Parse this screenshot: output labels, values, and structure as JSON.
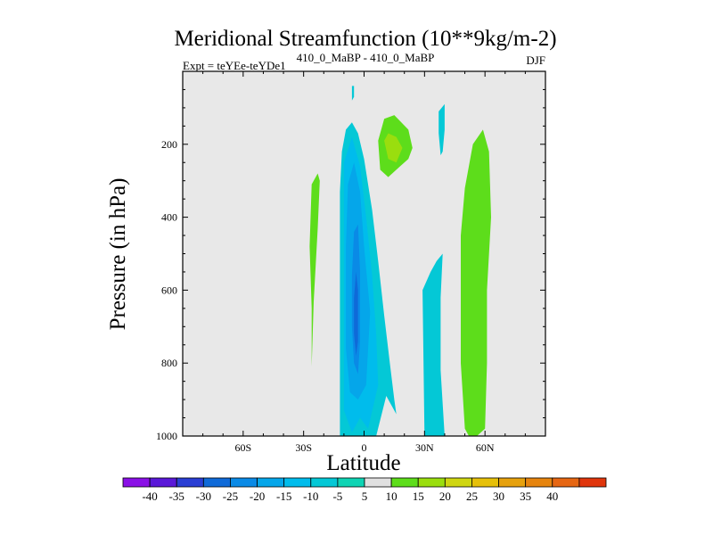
{
  "chart_data": {
    "type": "contour",
    "title": "Meridional Streamfunction (10**9kg/m-2)",
    "left_string": "Expt = teYEe-teYDe1",
    "center_string": "410_0_MaBP - 410_0_MaBP",
    "right_string": "DJF",
    "xlabel": "Latitude",
    "ylabel": "Pressure (in hPa)",
    "xlim": [
      -90,
      90
    ],
    "ylim": [
      1000,
      0
    ],
    "x_ticks": [
      {
        "value": -60,
        "label": "60S"
      },
      {
        "value": -30,
        "label": "30S"
      },
      {
        "value": 0,
        "label": "0"
      },
      {
        "value": 30,
        "label": "30N"
      },
      {
        "value": 60,
        "label": "60N"
      }
    ],
    "y_ticks": [
      {
        "value": 200,
        "label": "200"
      },
      {
        "value": 400,
        "label": "400"
      },
      {
        "value": 600,
        "label": "600"
      },
      {
        "value": 800,
        "label": "800"
      },
      {
        "value": 1000,
        "label": "1000"
      }
    ],
    "colorbar": {
      "labels": [
        "-40",
        "-35",
        "-30",
        "-25",
        "-20",
        "-15",
        "-10",
        "-5",
        "5",
        "10",
        "15",
        "20",
        "25",
        "30",
        "35",
        "40"
      ],
      "colors": [
        "#8a10e6",
        "#5a18d8",
        "#2a3ed4",
        "#0f6ad8",
        "#0a8ae6",
        "#05a6ea",
        "#00bcec",
        "#04c8d6",
        "#0fd4b4",
        "#e0e0e0",
        "#5ddd1b",
        "#9ade0e",
        "#cfd611",
        "#e6c009",
        "#e6a10d",
        "#e6840e",
        "#e66612",
        "#e0350c"
      ]
    },
    "regions": [
      {
        "level": "-10 to -5",
        "points": [
          [
            -6,
            0.04
          ],
          [
            -6,
            0.08
          ],
          [
            -5,
            0.07
          ],
          [
            -5,
            0.04
          ]
        ]
      },
      {
        "level": "-10 to -5",
        "points": [
          [
            -12,
            1.02
          ],
          [
            -12,
            0.33
          ],
          [
            -11,
            0.22
          ],
          [
            -9,
            0.16
          ],
          [
            -6,
            0.14
          ],
          [
            -3,
            0.17
          ],
          [
            0,
            0.24
          ],
          [
            4,
            0.38
          ],
          [
            7,
            0.52
          ],
          [
            10,
            0.67
          ],
          [
            13,
            0.81
          ],
          [
            15,
            0.9
          ],
          [
            16,
            0.94
          ],
          [
            11,
            0.89
          ],
          [
            6,
            1.0
          ],
          [
            2,
            1.08
          ],
          [
            -2,
            1.05
          ],
          [
            -6,
            1.1
          ],
          [
            -9,
            1.06
          ]
        ]
      },
      {
        "level": "-15 to -10",
        "points": [
          [
            -10,
            0.4
          ],
          [
            -10,
            0.25
          ],
          [
            -6,
            0.18
          ],
          [
            -2,
            0.26
          ],
          [
            1,
            0.4
          ],
          [
            4,
            0.56
          ],
          [
            6,
            0.72
          ],
          [
            7,
            0.86
          ],
          [
            2,
            0.98
          ],
          [
            -2,
            0.95
          ],
          [
            -6,
            0.99
          ],
          [
            -10,
            0.93
          ]
        ]
      },
      {
        "level": "-20 to -15",
        "points": [
          [
            -9,
            0.48
          ],
          [
            -8,
            0.31
          ],
          [
            -5,
            0.25
          ],
          [
            -2,
            0.33
          ],
          [
            0,
            0.48
          ],
          [
            3,
            0.66
          ],
          [
            1,
            0.86
          ],
          [
            -3,
            0.9
          ],
          [
            -7,
            0.88
          ],
          [
            -9,
            0.76
          ]
        ]
      },
      {
        "level": "-25 to -20",
        "points": [
          [
            -6,
            0.56
          ],
          [
            -5,
            0.44
          ],
          [
            -3,
            0.42
          ],
          [
            -2,
            0.55
          ],
          [
            -2,
            0.74
          ],
          [
            -3,
            0.83
          ],
          [
            -5,
            0.8
          ],
          [
            -6,
            0.7
          ]
        ]
      },
      {
        "level": "-30 to -25",
        "points": [
          [
            -5,
            0.62
          ],
          [
            -4,
            0.55
          ],
          [
            -3,
            0.6
          ],
          [
            -3,
            0.74
          ],
          [
            -4,
            0.78
          ],
          [
            -5,
            0.72
          ]
        ]
      },
      {
        "level": "-10 to -5",
        "points": [
          [
            29,
            0.6
          ],
          [
            33,
            0.55
          ],
          [
            36,
            0.52
          ],
          [
            39,
            0.5
          ],
          [
            38,
            0.62
          ],
          [
            38,
            0.82
          ],
          [
            40,
            1.0
          ],
          [
            37,
            1.08
          ],
          [
            32,
            1.08
          ],
          [
            30,
            1.0
          ]
        ]
      },
      {
        "level": "-10 to -5",
        "points": [
          [
            37,
            0.17
          ],
          [
            37,
            0.11
          ],
          [
            40,
            0.09
          ],
          [
            40,
            0.16
          ],
          [
            39,
            0.22
          ],
          [
            38,
            0.23
          ]
        ]
      },
      {
        "level": "5 to 10",
        "points": [
          [
            -26,
            0.31
          ],
          [
            -23,
            0.28
          ],
          [
            -22,
            0.3
          ],
          [
            -23,
            0.43
          ],
          [
            -25,
            0.63
          ],
          [
            -26,
            0.81
          ],
          [
            -26,
            0.65
          ],
          [
            -27,
            0.48
          ]
        ]
      },
      {
        "level": "5 to 10",
        "points": [
          [
            7,
            0.19
          ],
          [
            10,
            0.13
          ],
          [
            15,
            0.12
          ],
          [
            22,
            0.16
          ],
          [
            24,
            0.21
          ],
          [
            22,
            0.24
          ],
          [
            18,
            0.26
          ],
          [
            12,
            0.29
          ],
          [
            8,
            0.27
          ]
        ]
      },
      {
        "level": "10 to 15",
        "points": [
          [
            10,
            0.19
          ],
          [
            12,
            0.17
          ],
          [
            16,
            0.18
          ],
          [
            19,
            0.21
          ],
          [
            16,
            0.25
          ],
          [
            12,
            0.24
          ]
        ]
      },
      {
        "level": "5 to 10",
        "points": [
          [
            48,
            0.45
          ],
          [
            50,
            0.32
          ],
          [
            54,
            0.2
          ],
          [
            59,
            0.16
          ],
          [
            62,
            0.22
          ],
          [
            63,
            0.4
          ],
          [
            61,
            0.6
          ],
          [
            61,
            0.8
          ],
          [
            60,
            0.98
          ],
          [
            56,
            1.05
          ],
          [
            52,
            1.04
          ],
          [
            50,
            0.98
          ],
          [
            48,
            0.8
          ]
        ]
      }
    ]
  }
}
